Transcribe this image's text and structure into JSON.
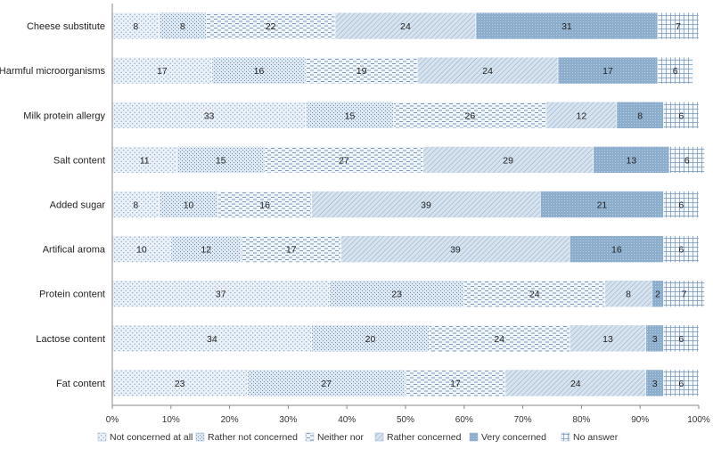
{
  "chart_data": {
    "type": "bar",
    "orientation": "horizontal",
    "stacked": true,
    "categories": [
      "Cheese substitute",
      "Harmful microorganisms",
      "Milk protein allergy",
      "Salt content",
      "Added sugar",
      "Artifical aroma",
      "Protein content",
      "Lactose content",
      "Fat content"
    ],
    "series": [
      {
        "name": "Not concerned at all",
        "color": "#dfe9f3",
        "values": [
          8,
          17,
          33,
          11,
          8,
          10,
          37,
          34,
          23
        ]
      },
      {
        "name": "Rather not concerned",
        "color": "#d4e1ee",
        "values": [
          8,
          16,
          15,
          15,
          10,
          12,
          23,
          20,
          27
        ]
      },
      {
        "name": "Neither nor",
        "color": "#e6eef7",
        "values": [
          22,
          19,
          26,
          27,
          16,
          17,
          24,
          24,
          17
        ]
      },
      {
        "name": "Rather concerned",
        "color": "#c9d9ea",
        "values": [
          24,
          24,
          12,
          29,
          39,
          39,
          8,
          13,
          24
        ]
      },
      {
        "name": "Very concerned",
        "color": "#93b3d1",
        "values": [
          31,
          17,
          8,
          13,
          21,
          16,
          2,
          3,
          3
        ]
      },
      {
        "name": "No answer",
        "color": "#eef3f9",
        "values": [
          7,
          6,
          6,
          6,
          6,
          6,
          7,
          6,
          6
        ]
      }
    ],
    "x_ticks": [
      "0%",
      "10%",
      "20%",
      "30%",
      "40%",
      "50%",
      "60%",
      "70%",
      "80%",
      "90%",
      "100%"
    ],
    "xlim": [
      0,
      100
    ],
    "grid": false,
    "legend_position": "bottom"
  }
}
